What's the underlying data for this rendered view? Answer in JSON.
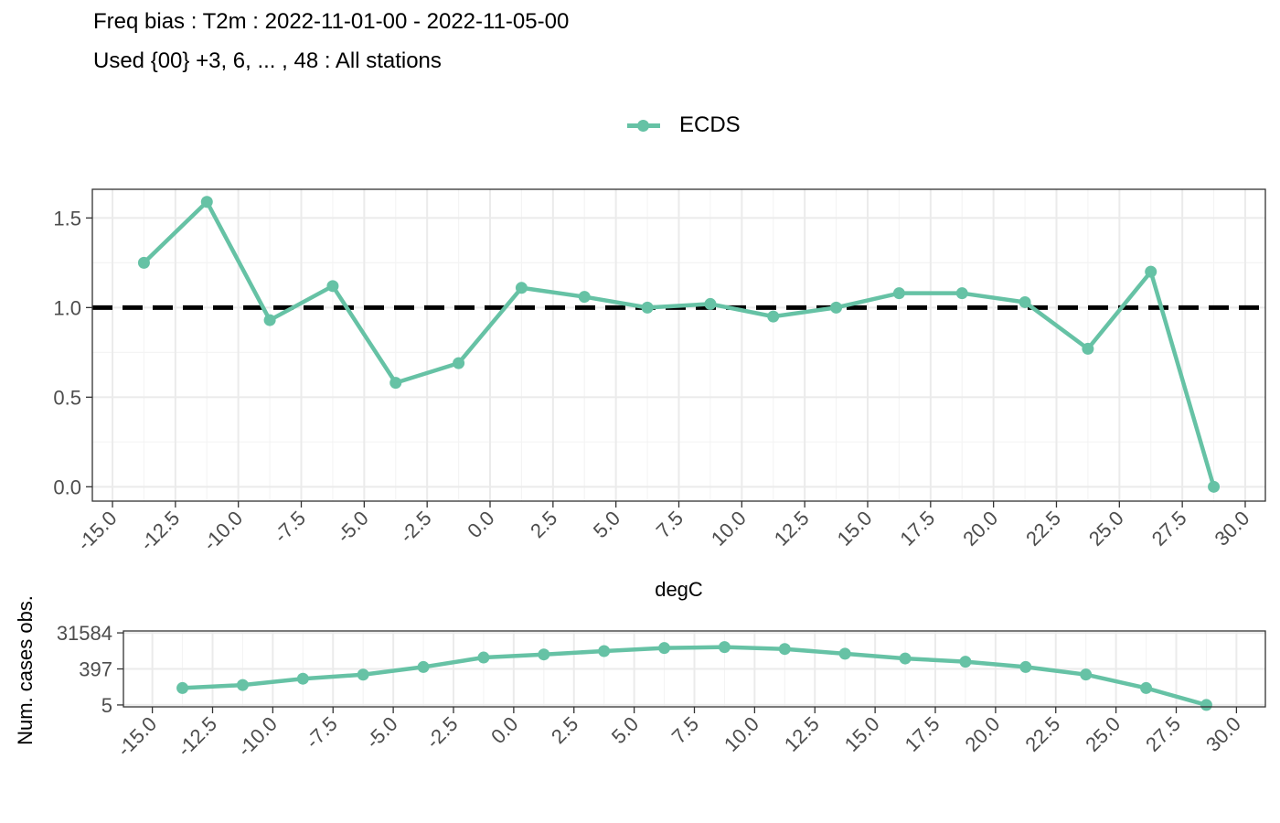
{
  "title": "Freq bias : T2m : 2022-11-01-00 - 2022-11-05-00",
  "subtitle": "Used {00} +3, 6, ... , 48 : All stations",
  "colors": {
    "series": "#66c2a5",
    "reference": "#000000",
    "grid": "#ebebeb"
  },
  "chart_data": [
    {
      "type": "line",
      "legend_position": "top",
      "xlabel": "degC",
      "ylabel": "",
      "grid": true,
      "xlim": [
        -15.8,
        30.8
      ],
      "ylim": [
        -0.08,
        1.66
      ],
      "x_ticks": [
        -15,
        -12.5,
        -10,
        -7.5,
        -5,
        -2.5,
        0,
        2.5,
        5,
        7.5,
        10,
        12.5,
        15,
        17.5,
        20,
        22.5,
        25,
        27.5,
        30
      ],
      "x_tick_labels": [
        "-15.0",
        "-12.5",
        "-10.0",
        "-7.5",
        "-5.0",
        "-2.5",
        "0.0",
        "2.5",
        "5.0",
        "7.5",
        "10.0",
        "12.5",
        "15.0",
        "17.5",
        "20.0",
        "22.5",
        "25.0",
        "27.5",
        "30.0"
      ],
      "y_ticks": [
        0,
        0.5,
        1,
        1.5
      ],
      "y_tick_labels": [
        "0.0",
        "0.5",
        "1.0",
        "1.5"
      ],
      "reference_line": {
        "y": 1.0,
        "style": "dashed"
      },
      "series": [
        {
          "name": "ECDS",
          "x": [
            -13.75,
            -11.25,
            -8.75,
            -6.25,
            -3.75,
            -1.25,
            1.25,
            3.75,
            6.25,
            8.75,
            11.25,
            13.75,
            16.25,
            18.75,
            21.25,
            23.75,
            26.25,
            28.75
          ],
          "values": [
            1.25,
            1.59,
            0.93,
            1.12,
            0.58,
            0.69,
            1.11,
            1.06,
            1.0,
            1.02,
            0.95,
            1.0,
            1.08,
            1.08,
            1.03,
            0.77,
            1.2,
            0.0
          ]
        }
      ]
    },
    {
      "type": "line",
      "scale": "log",
      "xlabel": "",
      "ylabel": "Num. cases obs.",
      "grid": true,
      "xlim": [
        -16.2,
        31.2
      ],
      "y_ticks": [
        5,
        397,
        31584
      ],
      "y_tick_labels": [
        "5",
        "397",
        "31584"
      ],
      "x_ticks": [
        -15,
        -12.5,
        -10,
        -7.5,
        -5,
        -2.5,
        0,
        2.5,
        5,
        7.5,
        10,
        12.5,
        15,
        17.5,
        20,
        22.5,
        25,
        27.5,
        30
      ],
      "x_tick_labels": [
        "-15.0",
        "-12.5",
        "-10.0",
        "-7.5",
        "-5.0",
        "-2.5",
        "0.0",
        "2.5",
        "5.0",
        "7.5",
        "10.0",
        "12.5",
        "15.0",
        "17.5",
        "20.0",
        "22.5",
        "25.0",
        "27.5",
        "30.0"
      ],
      "series": [
        {
          "name": "ECDS",
          "x": [
            -13.75,
            -11.25,
            -8.75,
            -6.25,
            -3.75,
            -1.25,
            1.25,
            3.75,
            6.25,
            8.75,
            11.25,
            13.75,
            16.25,
            18.75,
            21.25,
            23.75,
            26.25,
            28.75
          ],
          "values": [
            39,
            56,
            121,
            198,
            501,
            1585,
            2291,
            3467,
            5012,
            5623,
            4467,
            2512,
            1413,
            955,
            501,
            200,
            39,
            5
          ]
        }
      ]
    }
  ]
}
